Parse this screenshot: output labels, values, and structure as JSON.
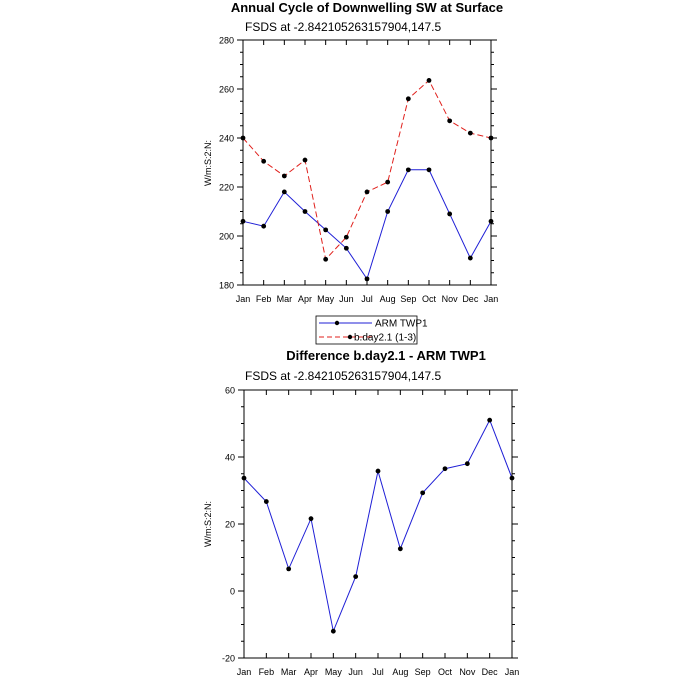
{
  "chart_data": [
    {
      "type": "line",
      "title": "Annual Cycle of Downwelling SW at Surface",
      "subtitle": "FSDS at -2.842105263157904,147.5",
      "xlabel": "",
      "ylabel": "W/m:S:2:N:",
      "categories": [
        "Jan",
        "Feb",
        "Mar",
        "Apr",
        "May",
        "Jun",
        "Jul",
        "Aug",
        "Sep",
        "Oct",
        "Nov",
        "Dec",
        "Jan"
      ],
      "ylim": [
        180,
        280
      ],
      "yticks": [
        180,
        200,
        220,
        240,
        260,
        280
      ],
      "grid": false,
      "legend": "bottom-center",
      "series": [
        {
          "name": "ARM TWP1",
          "color": "#1f1fd6",
          "dash": "solid",
          "values": [
            206,
            204,
            218,
            210,
            202.5,
            195,
            182.5,
            210,
            227,
            227,
            209,
            191,
            206
          ]
        },
        {
          "name": "b.day2.1 (1-3)",
          "color": "#e0201c",
          "dash": "dashed",
          "values": [
            240,
            230.5,
            224.5,
            231,
            190.5,
            199.5,
            218,
            222,
            256,
            263.5,
            247,
            242,
            240
          ]
        }
      ]
    },
    {
      "type": "line",
      "title": "Difference b.day2.1 - ARM TWP1",
      "subtitle": "FSDS at -2.842105263157904,147.5",
      "xlabel": "",
      "ylabel": "W/m:S:2:N:",
      "categories": [
        "Jan",
        "Feb",
        "Mar",
        "Apr",
        "May",
        "Jun",
        "Jul",
        "Aug",
        "Sep",
        "Oct",
        "Nov",
        "Dec",
        "Jan"
      ],
      "ylim": [
        -20,
        60
      ],
      "yticks": [
        -20,
        0,
        20,
        40,
        60
      ],
      "grid": false,
      "series": [
        {
          "color": "#1f1fd6",
          "dash": "solid",
          "values": [
            33.7,
            26.7,
            6.6,
            21.6,
            -12,
            4.3,
            35.8,
            12.6,
            29.3,
            36.5,
            38,
            51,
            33.7
          ]
        }
      ]
    }
  ]
}
